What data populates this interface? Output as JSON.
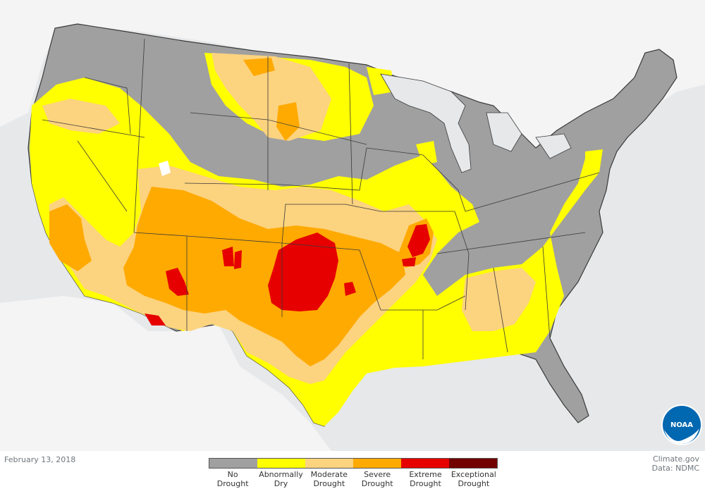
{
  "map": {
    "date": "February 13, 2018",
    "credit_site": "Climate.gov",
    "credit_data": "Data: NDMC",
    "logo_text": "NOAA",
    "colors": {
      "background": "#e6e8ea",
      "land_outside": "#ffffff",
      "state_border": "#3a3a3a"
    }
  },
  "legend": {
    "categories": [
      {
        "label": "No\nDrought",
        "color": "#a0a0a0"
      },
      {
        "label": "Abnormally\nDry",
        "color": "#ffff00"
      },
      {
        "label": "Moderate\nDrought",
        "color": "#fcd37f"
      },
      {
        "label": "Severe\nDrought",
        "color": "#ffaa00"
      },
      {
        "label": "Extreme\nDrought",
        "color": "#e60000"
      },
      {
        "label": "Exceptional\nDrought",
        "color": "#730000"
      }
    ]
  }
}
